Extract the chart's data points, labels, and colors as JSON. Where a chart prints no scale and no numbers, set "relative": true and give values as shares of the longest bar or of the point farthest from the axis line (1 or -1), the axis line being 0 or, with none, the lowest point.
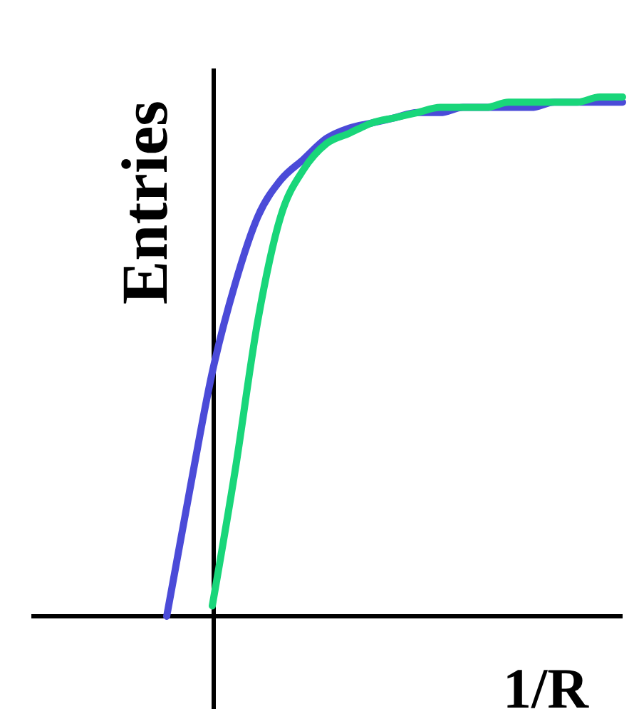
{
  "chart_data": {
    "type": "line",
    "relative": true,
    "xlabel": "1/R",
    "ylabel": "Entries",
    "marker": "none",
    "line_style": "solid",
    "categories": [
      null,
      null,
      null,
      null,
      null,
      null,
      null,
      null,
      null,
      null,
      null,
      null,
      null,
      null,
      null,
      null,
      null,
      null,
      null,
      null,
      null
    ],
    "series": [
      {
        "color": "#4b4bd8",
        "values": [
          0,
          0.24,
          0.47,
          0.64,
          0.77,
          0.84,
          0.88,
          0.92,
          0.94,
          0.95,
          0.96,
          0.97,
          0.97,
          0.98,
          0.98,
          0.98,
          0.98,
          0.99,
          0.99,
          0.99,
          0.99
        ]
      },
      {
        "color": "#19d67a",
        "values": [
          null,
          null,
          0.02,
          0.28,
          0.57,
          0.77,
          0.86,
          0.91,
          0.93,
          0.95,
          0.96,
          0.97,
          0.98,
          0.98,
          0.98,
          0.99,
          0.99,
          0.99,
          0.99,
          1.0,
          1.0
        ]
      }
    ]
  }
}
